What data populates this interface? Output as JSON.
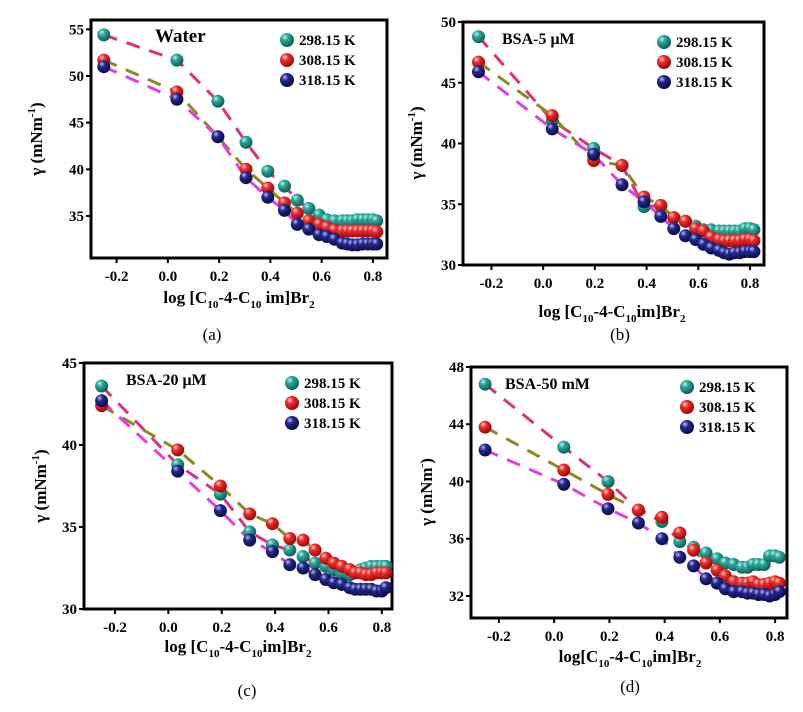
{
  "chart_data": [
    {
      "type": "scatter",
      "panel_label": "(a)",
      "title": "Water",
      "ylabel": "γ (mNm",
      "ylabel_sup": "-1",
      "ylabel_end": ")",
      "xlabel_parts": [
        {
          "t": "log [C"
        },
        {
          "t": "10",
          "sub": true
        },
        {
          "t": "-4-C"
        },
        {
          "t": "10",
          "sub": true
        },
        {
          "t": " im]Br"
        },
        {
          "t": "2",
          "sub": true
        }
      ],
      "xlim": [
        -0.3,
        0.855
      ],
      "ylim": [
        30.5,
        56
      ],
      "xticks": [
        -0.2,
        0.0,
        0.2,
        0.4,
        0.6,
        0.8
      ],
      "yticks": [
        35,
        40,
        45,
        50,
        55
      ],
      "grid": false,
      "legend": "top-right",
      "x": [
        -0.25,
        0.035,
        0.195,
        0.305,
        0.39,
        0.455,
        0.505,
        0.55,
        0.59,
        0.62,
        0.65,
        0.68,
        0.7,
        0.72,
        0.74,
        0.76,
        0.78,
        0.8,
        0.815
      ],
      "series": [
        {
          "name": "298.15 K",
          "values": [
            54.4,
            51.7,
            47.3,
            42.9,
            39.8,
            38.2,
            36.7,
            35.8,
            35.1,
            34.6,
            34.5,
            34.5,
            34.5,
            34.5,
            34.6,
            34.6,
            34.6,
            34.6,
            34.5
          ]
        },
        {
          "name": "308.15 K",
          "values": [
            51.7,
            48.3,
            43.5,
            40.0,
            38.0,
            36.4,
            35.3,
            34.5,
            34.1,
            33.8,
            33.5,
            33.4,
            33.4,
            33.4,
            33.4,
            33.4,
            33.4,
            33.4,
            33.3
          ]
        },
        {
          "name": "318.15 K",
          "values": [
            51.0,
            47.5,
            43.5,
            39.1,
            37.0,
            35.6,
            34.1,
            33.6,
            33.0,
            32.8,
            32.5,
            32.1,
            32.0,
            31.9,
            31.9,
            32.0,
            32.0,
            32.0,
            32.0
          ]
        }
      ]
    },
    {
      "type": "scatter",
      "panel_label": "(b)",
      "title": "BSA-5 μM",
      "ylabel": "γ (mNm",
      "ylabel_sup": "-1",
      "ylabel_end": ")",
      "xlabel_parts": [
        {
          "t": "log [C"
        },
        {
          "t": "10",
          "sub": true
        },
        {
          "t": "-4-C"
        },
        {
          "t": "10",
          "sub": true
        },
        {
          "t": "im]Br"
        },
        {
          "t": "2",
          "sub": true
        }
      ],
      "xlim": [
        -0.31,
        0.854
      ],
      "ylim": [
        30,
        50
      ],
      "xticks": [
        -0.2,
        0.0,
        0.2,
        0.4,
        0.6,
        0.8
      ],
      "yticks": [
        30,
        35,
        40,
        45,
        50
      ],
      "grid": false,
      "legend": "top-right",
      "x": [
        -0.25,
        0.035,
        0.195,
        0.305,
        0.39,
        0.455,
        0.505,
        0.55,
        0.59,
        0.62,
        0.65,
        0.68,
        0.7,
        0.72,
        0.74,
        0.76,
        0.78,
        0.8,
        0.815
      ],
      "series": [
        {
          "name": "298.15 K",
          "values": [
            48.8,
            41.9,
            39.6,
            38.2,
            34.8,
            34.9,
            33.9,
            33.6,
            33.2,
            32.9,
            32.9,
            32.8,
            32.8,
            32.8,
            32.8,
            32.8,
            33.0,
            33.0,
            32.9
          ]
        },
        {
          "name": "308.15 K",
          "values": [
            46.7,
            42.3,
            38.6,
            38.2,
            35.6,
            34.9,
            33.9,
            33.6,
            33.0,
            32.8,
            32.3,
            32.1,
            32.0,
            32.0,
            32.0,
            32.0,
            32.1,
            32.1,
            32.0
          ]
        },
        {
          "name": "318.15 K",
          "values": [
            45.9,
            41.2,
            39.1,
            36.6,
            35.2,
            34.0,
            33.0,
            32.4,
            32.1,
            31.7,
            31.4,
            31.2,
            31.0,
            30.9,
            31.0,
            31.0,
            31.1,
            31.1,
            31.1
          ]
        }
      ]
    },
    {
      "type": "scatter",
      "panel_label": "(c)",
      "title": "BSA-20 μM",
      "ylabel": "γ (mNm",
      "ylabel_sup": "-1",
      "ylabel_end": ")",
      "xlabel_parts": [
        {
          "t": "log [C"
        },
        {
          "t": "10",
          "sub": true
        },
        {
          "t": "-4-C"
        },
        {
          "t": "10",
          "sub": true
        },
        {
          "t": "im]Br"
        },
        {
          "t": "2",
          "sub": true
        }
      ],
      "xlim": [
        -0.316,
        0.838
      ],
      "ylim": [
        30,
        45
      ],
      "xticks": [
        -0.2,
        0.0,
        0.2,
        0.4,
        0.6,
        0.8
      ],
      "yticks": [
        30,
        35,
        40,
        45
      ],
      "grid": false,
      "legend": "top-right",
      "x": [
        -0.25,
        0.035,
        0.195,
        0.305,
        0.39,
        0.455,
        0.505,
        0.55,
        0.59,
        0.62,
        0.65,
        0.68,
        0.7,
        0.72,
        0.74,
        0.76,
        0.78,
        0.8,
        0.815
      ],
      "series": [
        {
          "name": "298.15 K",
          "values": [
            43.6,
            38.8,
            37.0,
            34.7,
            33.9,
            33.6,
            33.2,
            32.8,
            32.6,
            32.4,
            32.2,
            32.1,
            32.2,
            32.4,
            32.5,
            32.6,
            32.6,
            32.6,
            32.6
          ]
        },
        {
          "name": "308.15 K",
          "values": [
            42.4,
            39.7,
            37.5,
            35.8,
            35.2,
            34.3,
            34.2,
            33.6,
            33.1,
            32.8,
            32.6,
            32.4,
            32.2,
            32.2,
            32.1,
            32.1,
            32.2,
            32.2,
            32.2
          ]
        },
        {
          "name": "318.15 K",
          "values": [
            42.7,
            38.4,
            36.0,
            34.2,
            33.5,
            32.7,
            32.5,
            32.1,
            31.8,
            31.6,
            31.5,
            31.3,
            31.2,
            31.2,
            31.2,
            31.2,
            31.1,
            31.1,
            31.3
          ]
        }
      ]
    },
    {
      "type": "scatter",
      "panel_label": "(d)",
      "title": "BSA-50 mM",
      "ylabel": "γ (mNm",
      "ylabel_sup": "-",
      "ylabel_end": ")",
      "xlabel_parts": [
        {
          "t": "log[C"
        },
        {
          "t": "10",
          "sub": true
        },
        {
          "t": "-4-C"
        },
        {
          "t": "10",
          "sub": true
        },
        {
          "t": "im]Br"
        },
        {
          "t": "2",
          "sub": true
        }
      ],
      "xlim": [
        -0.301,
        0.843
      ],
      "ylim": [
        30.46,
        48
      ],
      "xticks": [
        -0.2,
        0.0,
        0.2,
        0.4,
        0.6,
        0.8
      ],
      "yticks": [
        32,
        36,
        40,
        44,
        48
      ],
      "grid": false,
      "legend": "top-right",
      "x": [
        -0.25,
        0.035,
        0.195,
        0.305,
        0.39,
        0.455,
        0.505,
        0.55,
        0.59,
        0.62,
        0.65,
        0.68,
        0.7,
        0.72,
        0.74,
        0.76,
        0.78,
        0.8,
        0.815
      ],
      "series": [
        {
          "name": "298.15 K",
          "values": [
            46.8,
            42.4,
            40.0,
            38.0,
            37.2,
            35.8,
            35.4,
            35.0,
            34.6,
            34.3,
            34.2,
            34.0,
            34.0,
            34.2,
            34.2,
            34.2,
            34.8,
            34.8,
            34.7
          ]
        },
        {
          "name": "308.15 K",
          "values": [
            43.8,
            40.8,
            39.1,
            38.0,
            37.5,
            36.4,
            35.2,
            34.3,
            33.8,
            33.4,
            33.0,
            32.9,
            32.9,
            33.0,
            32.8,
            32.8,
            32.9,
            33.0,
            32.9
          ]
        },
        {
          "name": "318.15 K",
          "values": [
            42.2,
            39.8,
            38.1,
            37.1,
            36.0,
            34.7,
            34.1,
            33.2,
            32.9,
            32.5,
            32.3,
            32.3,
            32.2,
            32.2,
            32.1,
            32.1,
            32.0,
            32.1,
            32.3
          ]
        }
      ]
    }
  ],
  "colors": {
    "marker": [
      "#1f9488",
      "#e41f1f",
      "#1a1f7a"
    ],
    "fit_line": [
      "#e0307a",
      "#8a8a1e",
      "#e040e0"
    ]
  }
}
